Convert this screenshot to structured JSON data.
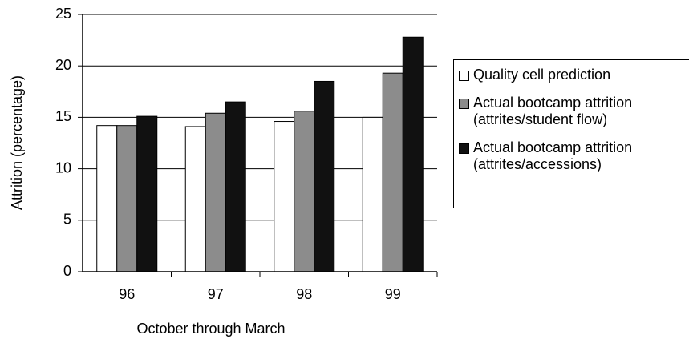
{
  "chart_data": {
    "type": "bar",
    "x_label": "October through March",
    "y_label": "Attrition (percentage)",
    "categories": [
      "96",
      "97",
      "98",
      "99"
    ],
    "series": [
      {
        "name": "Quality cell prediction",
        "color": "#ffffff",
        "values": [
          14.2,
          14.1,
          14.6,
          15.0
        ]
      },
      {
        "name": "Actual bootcamp attrition (attrites/student flow)",
        "color": "#8c8c8c",
        "values": [
          14.2,
          15.4,
          15.6,
          19.3
        ]
      },
      {
        "name": "Actual bootcamp attrition (attrites/accessions)",
        "color": "#111111",
        "values": [
          15.1,
          16.5,
          18.5,
          22.8
        ]
      }
    ],
    "ylim": [
      0,
      25
    ],
    "yticks": [
      0,
      5,
      10,
      15,
      20,
      25
    ],
    "grid": true,
    "legend": "right"
  }
}
